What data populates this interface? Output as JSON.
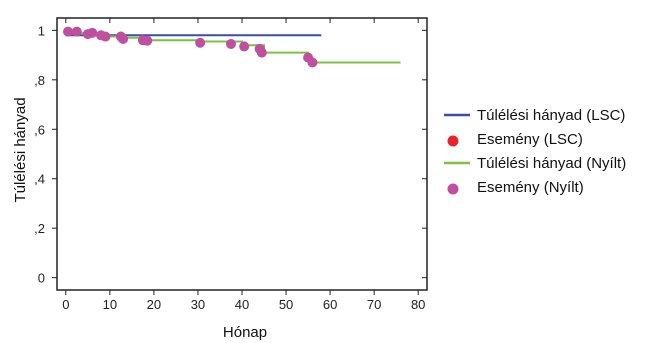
{
  "chart_data": {
    "type": "line",
    "xlabel": "Hónap",
    "ylabel": "Túlélési hányad",
    "xlim": [
      -2,
      82
    ],
    "ylim": [
      -0.05,
      1.05
    ],
    "xticks": [
      0,
      10,
      20,
      30,
      40,
      50,
      60,
      70,
      80
    ],
    "xtick_labels": [
      "0",
      "10",
      "20",
      "30",
      "40",
      "50",
      "60",
      "70",
      "80"
    ],
    "yticks": [
      0,
      0.2,
      0.4,
      0.6,
      0.8,
      1
    ],
    "ytick_labels": [
      "0",
      ",2",
      ",4",
      ",6",
      ",8",
      "1"
    ],
    "legend_position": "right",
    "series": [
      {
        "name": "Túlélési hányad (LSC)",
        "kind": "step",
        "color": "#3a4fa8",
        "x": [
          0,
          58
        ],
        "y": [
          0.98,
          0.98
        ]
      },
      {
        "name": "Esemény (LSC)",
        "kind": "points",
        "color": "#e8262a",
        "x": [],
        "y": []
      },
      {
        "name": "Túlélési hányad (Nyílt)",
        "kind": "step",
        "color": "#7cc242",
        "x": [
          0,
          2,
          5,
          8,
          12,
          18,
          30,
          40,
          45,
          55,
          56,
          76
        ],
        "y": [
          1.0,
          0.99,
          0.98,
          0.975,
          0.97,
          0.96,
          0.955,
          0.94,
          0.91,
          0.89,
          0.87,
          0.87
        ]
      },
      {
        "name": "Esemény (Nyílt)",
        "kind": "points",
        "color": "#c0509f",
        "x": [
          0.5,
          2.5,
          5,
          6,
          8,
          9,
          12.5,
          13,
          17.5,
          18.5,
          30.5,
          37.5,
          40.5,
          44,
          44.5,
          55,
          56
        ],
        "y": [
          0.995,
          0.995,
          0.985,
          0.99,
          0.98,
          0.975,
          0.975,
          0.965,
          0.96,
          0.958,
          0.95,
          0.945,
          0.935,
          0.925,
          0.91,
          0.89,
          0.87
        ]
      }
    ]
  }
}
